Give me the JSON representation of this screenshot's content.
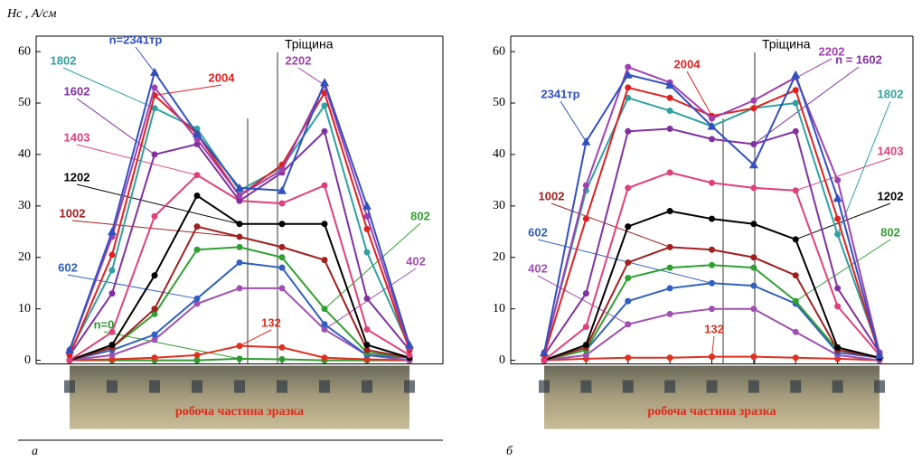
{
  "chart_data": [
    {
      "type": "line",
      "panel_label": "а",
      "y_label": "Hc , А/см",
      "crack_label": "Тріщина",
      "sample_label": "робоча частина  зразка",
      "categories": [
        null,
        null,
        null,
        null,
        null,
        null,
        null,
        null,
        null
      ],
      "ylim": [
        -2,
        63
      ],
      "yticks": [
        0,
        10,
        20,
        30,
        40,
        50,
        60
      ],
      "series": [
        {
          "name": "n=0",
          "color": "#2e9a2e",
          "values": [
            0,
            0,
            0,
            0,
            0.3,
            0.2,
            0,
            0,
            0
          ]
        },
        {
          "name": "132",
          "color": "#e03020",
          "values": [
            0,
            0.2,
            0.5,
            1,
            2.8,
            2.5,
            0.5,
            0.2,
            0
          ]
        },
        {
          "name": "402",
          "color": "#a050b0",
          "values": [
            0,
            1,
            4,
            11,
            14,
            14,
            6,
            1,
            0
          ]
        },
        {
          "name": "602",
          "color": "#3060c0",
          "values": [
            0,
            2,
            5,
            12,
            19,
            18,
            7,
            1,
            0.5
          ]
        },
        {
          "name": "802",
          "color": "#30a030",
          "values": [
            0,
            2.5,
            9,
            21.5,
            22,
            20,
            10,
            1.5,
            0.5
          ]
        },
        {
          "name": "1002",
          "color": "#a02020",
          "values": [
            0,
            2.5,
            10,
            26,
            24,
            22,
            19.5,
            2,
            0.5
          ]
        },
        {
          "name": "1202",
          "color": "#000000",
          "values": [
            0,
            3,
            16.5,
            32,
            26.5,
            26.5,
            26.5,
            3,
            0.5
          ]
        },
        {
          "name": "1403",
          "color": "#e0407a",
          "values": [
            0,
            5.5,
            28,
            36,
            31,
            30.5,
            34,
            6,
            1
          ]
        },
        {
          "name": "1602",
          "color": "#8030a0",
          "values": [
            1,
            13,
            40,
            42,
            31,
            36.5,
            44.5,
            12,
            2
          ]
        },
        {
          "name": "1802",
          "color": "#30a0a0",
          "values": [
            1.5,
            17.5,
            49,
            45,
            33,
            37.5,
            49.5,
            21,
            2.5
          ]
        },
        {
          "name": "2004",
          "color": "#e02020",
          "values": [
            1,
            20.5,
            51.5,
            44,
            32,
            38,
            52,
            25.5,
            2
          ]
        },
        {
          "name": "2202",
          "color": "#a040b0",
          "values": [
            2,
            24,
            53,
            43,
            32,
            37,
            53.5,
            28,
            2.5
          ]
        },
        {
          "name": "n=2341тр",
          "color": "#3050c0",
          "marker": "triangle",
          "values": [
            2,
            25,
            56,
            44,
            33.5,
            33,
            54,
            30,
            3
          ]
        }
      ]
    },
    {
      "type": "line",
      "panel_label": "б",
      "crack_label": "Тріщина",
      "sample_label": "робоча частина  зразка",
      "categories": [
        null,
        null,
        null,
        null,
        null,
        null,
        null,
        null,
        null
      ],
      "ylim": [
        -2,
        63
      ],
      "yticks": [
        0,
        10,
        20,
        30,
        40,
        50,
        60
      ],
      "series": [
        {
          "name": "132",
          "color": "#e03020",
          "values": [
            0,
            0.3,
            0.5,
            0.5,
            0.7,
            0.7,
            0.5,
            0.3,
            0
          ]
        },
        {
          "name": "402",
          "color": "#a050b0",
          "values": [
            0,
            1,
            7,
            9,
            10,
            10,
            5.5,
            1,
            0
          ]
        },
        {
          "name": "602",
          "color": "#3060c0",
          "values": [
            0,
            2,
            11.5,
            14,
            15,
            14.5,
            11,
            1.5,
            0.5
          ]
        },
        {
          "name": "802",
          "color": "#30a030",
          "values": [
            0,
            2,
            16,
            18,
            18.5,
            18,
            11.5,
            2,
            0.5
          ]
        },
        {
          "name": "1002",
          "color": "#a02020",
          "values": [
            0,
            2.5,
            19,
            22,
            21.5,
            20,
            16.5,
            2,
            0.5
          ]
        },
        {
          "name": "1202",
          "color": "#000000",
          "values": [
            0,
            3,
            26,
            29,
            27.5,
            26.5,
            23.5,
            2.5,
            0.5
          ]
        },
        {
          "name": "1403",
          "color": "#e0407a",
          "values": [
            0,
            6.5,
            33.5,
            36.5,
            34.5,
            33.5,
            33,
            10.5,
            1
          ]
        },
        {
          "name": "n = 1602",
          "color": "#8030a0",
          "values": [
            1,
            13,
            44.5,
            45,
            43,
            42,
            44.5,
            14,
            1.5
          ]
        },
        {
          "name": "1802",
          "color": "#30a0a0",
          "values": [
            1.5,
            33,
            51,
            48.5,
            45.5,
            49,
            50,
            24.5,
            1.5
          ]
        },
        {
          "name": "2004",
          "color": "#e02020",
          "values": [
            1,
            27.5,
            53,
            51,
            47.5,
            49,
            52.5,
            27.5,
            1
          ]
        },
        {
          "name": "2202",
          "color": "#a040b0",
          "values": [
            1.5,
            34,
            57,
            54,
            47,
            50.5,
            55,
            35,
            1.5
          ]
        },
        {
          "name": "2341тр",
          "color": "#3050c0",
          "marker": "triangle",
          "values": [
            1.5,
            42.5,
            55.5,
            53.5,
            45.5,
            38,
            55.5,
            31.5,
            1
          ]
        }
      ]
    }
  ]
}
